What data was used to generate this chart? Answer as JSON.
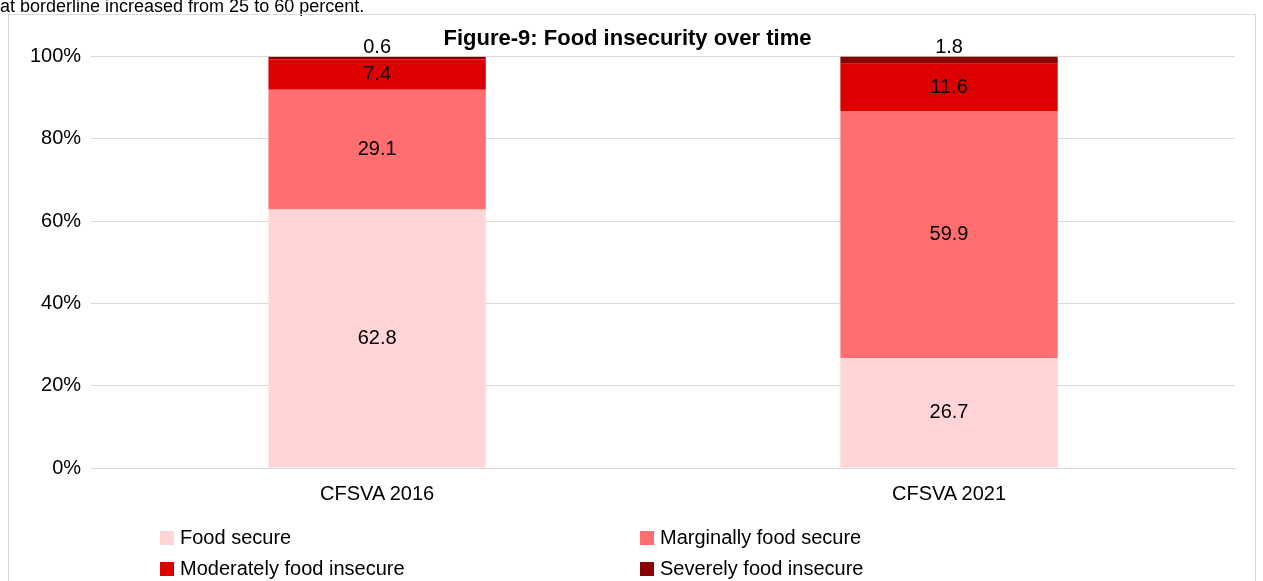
{
  "chart_data": {
    "type": "bar",
    "title": "Figure-9: Food insecurity over time",
    "annotations": [
      "at borderline increased from 25 to 60 percent."
    ],
    "categories": [
      "CFSVA 2016",
      "CFSVA 2021"
    ],
    "stacked": true,
    "series": [
      {
        "name": "Food secure",
        "color": "#ffd5d5",
        "values": [
          62.8,
          26.7
        ]
      },
      {
        "name": "Marginally food secure",
        "color": "#ff6f6f",
        "values": [
          29.1,
          59.9
        ]
      },
      {
        "name": "Moderately food insecure",
        "color": "#dc0000",
        "values": [
          7.4,
          11.6
        ]
      },
      {
        "name": "Severely food insecure",
        "color": "#8b0000",
        "values": [
          0.6,
          1.8
        ]
      }
    ],
    "ylim": [
      0,
      100
    ],
    "yticks": [
      {
        "value": 0,
        "label": "0%"
      },
      {
        "value": 20,
        "label": "20%"
      },
      {
        "value": 40,
        "label": "40%"
      },
      {
        "value": 60,
        "label": "60%"
      },
      {
        "value": 80,
        "label": "80%"
      },
      {
        "value": 100,
        "label": "100%"
      }
    ],
    "grid": "y",
    "legend": "bottom",
    "data_labels": true
  }
}
